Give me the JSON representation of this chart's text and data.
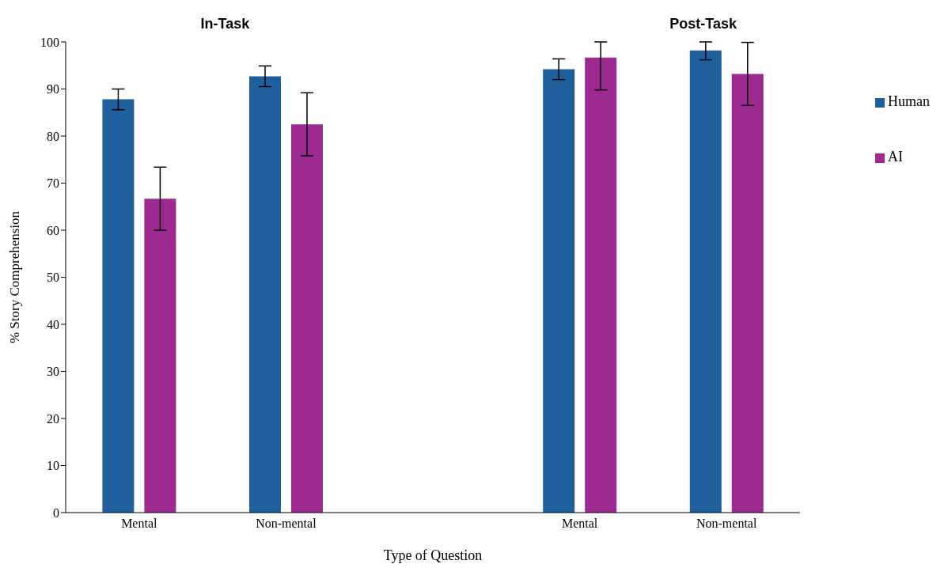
{
  "chart_data": {
    "type": "bar",
    "xlabel": "Type of Question",
    "ylabel": "% Story Comprehension",
    "annotations": [
      "In-Task",
      "Post-Task"
    ],
    "categories": [
      "Mental",
      "Non-mental",
      null,
      "Mental",
      "Non-mental"
    ],
    "series": [
      {
        "name": "Human",
        "color": "#1f5f9c",
        "values": [
          87.8,
          92.7,
          null,
          94.2,
          98.2
        ],
        "errors": [
          2.2,
          2.2,
          null,
          2.2,
          [
            96.2,
            100
          ]
        ]
      },
      {
        "name": "AI",
        "color": "#9c2a91",
        "values": [
          66.7,
          82.5,
          null,
          96.7,
          93.2
        ],
        "errors": [
          6.7,
          6.7,
          null,
          [
            89.8,
            100
          ],
          6.7
        ]
      }
    ],
    "ylim": [
      0,
      100
    ],
    "yticks": [
      0,
      10,
      20,
      30,
      40,
      50,
      60,
      70,
      80,
      90,
      100
    ],
    "grid": false,
    "legend": "right"
  }
}
